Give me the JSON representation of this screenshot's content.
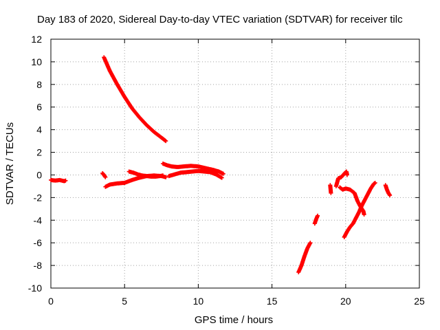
{
  "chart_data": {
    "type": "scatter",
    "title": "Day 183 of 2020, Sidereal Day-to-day VTEC variation (SDTVAR) for receiver tilc",
    "xlabel": "GPS time / hours",
    "ylabel": "SDTVAR / TECUs",
    "xlim": [
      0,
      25
    ],
    "ylim": [
      -10,
      12
    ],
    "xticks": [
      0,
      5,
      10,
      15,
      20,
      25
    ],
    "yticks": [
      -10,
      -8,
      -6,
      -4,
      -2,
      0,
      2,
      4,
      6,
      8,
      10,
      12
    ],
    "grid": true,
    "marker": "plus",
    "color": "#ff0000",
    "segments": [
      {
        "x": [
          0.0,
          0.3,
          0.6,
          0.9,
          1.0
        ],
        "y": [
          -0.45,
          -0.5,
          -0.45,
          -0.55,
          -0.5
        ]
      },
      {
        "x": [
          3.5,
          3.6,
          3.7
        ],
        "y": [
          0.15,
          0.0,
          -0.2
        ]
      },
      {
        "x": [
          3.6,
          4.0,
          4.5,
          5.0,
          5.5,
          6.0,
          6.5,
          7.0,
          7.5,
          7.8
        ],
        "y": [
          10.4,
          9.2,
          8.0,
          6.9,
          5.9,
          5.1,
          4.4,
          3.8,
          3.3,
          3.0
        ]
      },
      {
        "x": [
          3.7,
          4.0,
          4.5,
          5.0,
          5.5,
          6.0,
          6.5,
          7.0,
          7.5,
          7.8
        ],
        "y": [
          -1.05,
          -0.85,
          -0.75,
          -0.7,
          -0.45,
          -0.25,
          -0.1,
          -0.05,
          -0.1,
          -0.2
        ]
      },
      {
        "x": [
          5.3,
          5.6,
          5.9,
          6.2,
          6.5,
          6.8,
          7.1,
          7.4,
          7.6
        ],
        "y": [
          0.3,
          0.2,
          0.05,
          -0.05,
          -0.1,
          -0.15,
          -0.15,
          -0.1,
          -0.05
        ]
      },
      {
        "x": [
          7.6,
          7.9,
          8.2,
          8.6,
          9.0,
          9.5,
          10.0,
          10.5,
          11.0,
          11.4,
          11.7
        ],
        "y": [
          1.0,
          0.85,
          0.75,
          0.7,
          0.75,
          0.8,
          0.75,
          0.6,
          0.45,
          0.3,
          0.1
        ]
      },
      {
        "x": [
          8.0,
          8.4,
          8.8,
          9.2,
          9.6,
          10.0,
          10.4,
          10.8,
          11.2,
          11.6
        ],
        "y": [
          -0.1,
          0.05,
          0.2,
          0.25,
          0.3,
          0.35,
          0.3,
          0.25,
          0.05,
          -0.25
        ]
      },
      {
        "x": [
          16.8,
          17.0,
          17.2,
          17.4,
          17.6
        ],
        "y": [
          -8.6,
          -8.0,
          -7.2,
          -6.5,
          -6.0
        ]
      },
      {
        "x": [
          17.9,
          18.0,
          18.1
        ],
        "y": [
          -4.3,
          -3.9,
          -3.6
        ]
      },
      {
        "x": [
          18.95,
          19.0
        ],
        "y": [
          -0.9,
          -1.6
        ]
      },
      {
        "x": [
          19.35,
          19.5,
          19.7,
          19.9,
          20.05,
          20.1
        ],
        "y": [
          -1.0,
          -0.3,
          -0.2,
          0.1,
          0.3,
          0.0
        ]
      },
      {
        "x": [
          19.6,
          19.8,
          20.0,
          20.3,
          20.6,
          20.8,
          21.0,
          21.2,
          21.25
        ],
        "y": [
          -1.1,
          -1.3,
          -1.2,
          -1.3,
          -1.6,
          -2.3,
          -2.8,
          -3.2,
          -3.5
        ]
      },
      {
        "x": [
          19.9,
          20.1,
          20.3,
          20.5,
          20.7,
          20.9,
          21.1,
          21.3,
          21.5,
          21.7,
          21.9,
          22.0
        ],
        "y": [
          -5.5,
          -5.0,
          -4.6,
          -4.3,
          -3.8,
          -3.3,
          -2.7,
          -2.2,
          -1.7,
          -1.2,
          -0.8,
          -0.7
        ]
      },
      {
        "x": [
          22.7,
          22.8,
          22.9,
          23.0
        ],
        "y": [
          -0.9,
          -1.3,
          -1.6,
          -1.8
        ]
      }
    ]
  }
}
